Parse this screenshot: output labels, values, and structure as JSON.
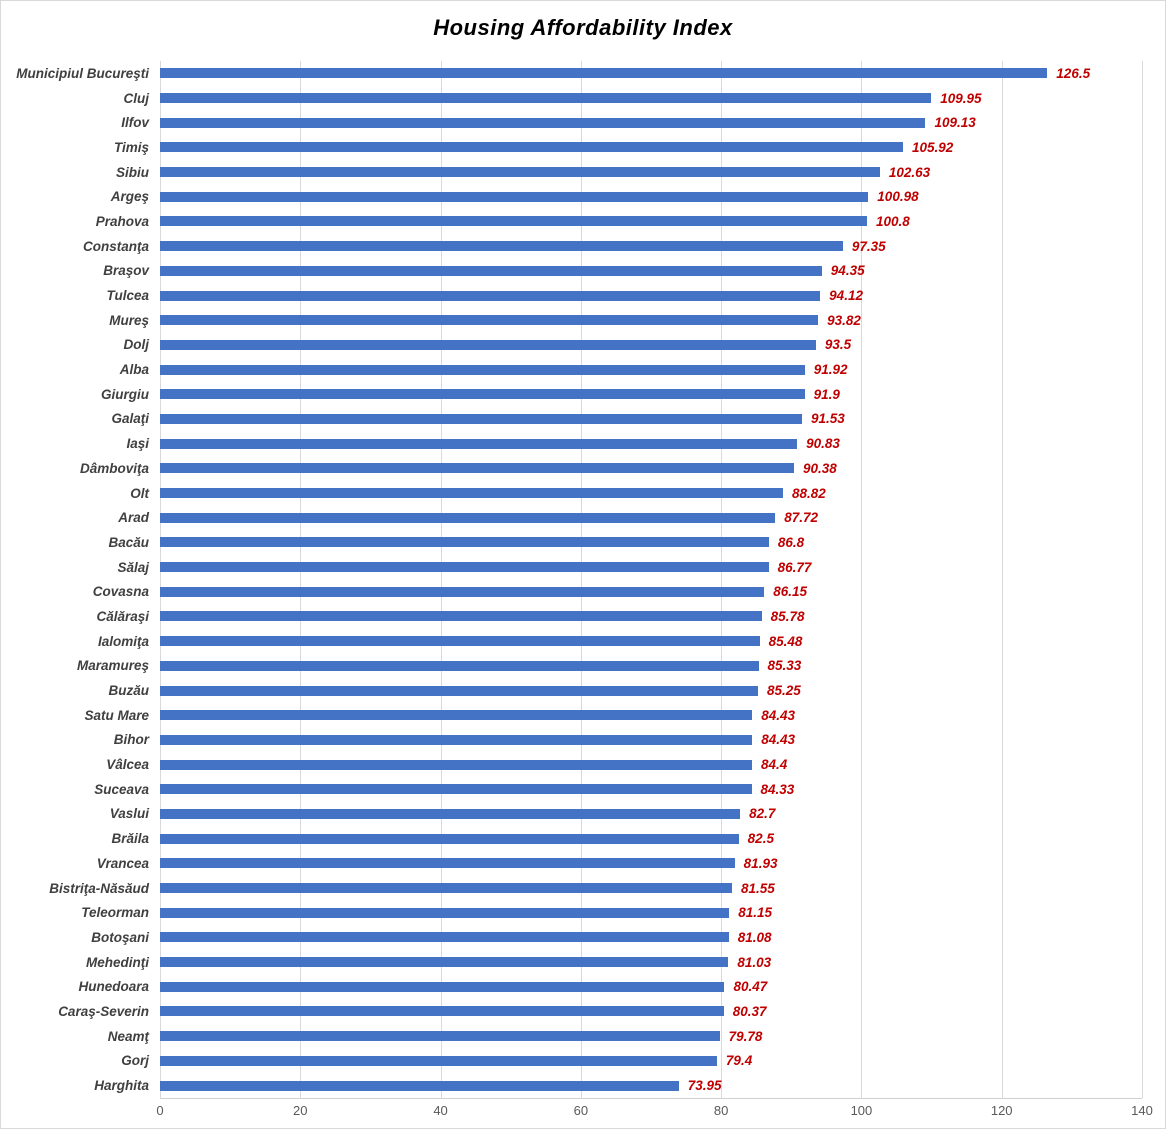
{
  "chart_data": {
    "type": "bar",
    "orientation": "horizontal",
    "title": "Housing Affordability Index",
    "categories": [
      "Municipiul Bucureşti",
      "Cluj",
      "Ilfov",
      "Timiş",
      "Sibiu",
      "Argeş",
      "Prahova",
      "Constanţa",
      "Braşov",
      "Tulcea",
      "Mureş",
      "Dolj",
      "Alba",
      "Giurgiu",
      "Galaţi",
      "Iaşi",
      "Dâmboviţa",
      "Olt",
      "Arad",
      "Bacău",
      "Sălaj",
      "Covasna",
      "Călăraşi",
      "Ialomiţa",
      "Maramureş",
      "Buzău",
      "Satu Mare",
      "Bihor",
      "Vâlcea",
      "Suceava",
      "Vaslui",
      "Brăila",
      "Vrancea",
      "Bistriţa-Năsăud",
      "Teleorman",
      "Botoşani",
      "Mehedinţi",
      "Hunedoara",
      "Caraş-Severin",
      "Neamţ",
      "Gorj",
      "Harghita"
    ],
    "values": [
      126.5,
      109.95,
      109.13,
      105.92,
      102.63,
      100.98,
      100.8,
      97.35,
      94.35,
      94.12,
      93.82,
      93.5,
      91.92,
      91.9,
      91.53,
      90.83,
      90.38,
      88.82,
      87.72,
      86.8,
      86.77,
      86.15,
      85.78,
      85.48,
      85.33,
      85.25,
      84.43,
      84.43,
      84.4,
      84.33,
      82.7,
      82.5,
      81.93,
      81.55,
      81.15,
      81.08,
      81.03,
      80.47,
      80.37,
      79.78,
      79.4,
      73.95
    ],
    "value_labels": [
      "126.5",
      "109.95",
      "109.13",
      "105.92",
      "102.63",
      "100.98",
      "100.8",
      "97.35",
      "94.35",
      "94.12",
      "93.82",
      "93.5",
      "91.92",
      "91.9",
      "91.53",
      "90.83",
      "90.38",
      "88.82",
      "87.72",
      "86.8",
      "86.77",
      "86.15",
      "85.78",
      "85.48",
      "85.33",
      "85.25",
      "84.43",
      "84.43",
      "84.4",
      "84.33",
      "82.7",
      "82.5",
      "81.93",
      "81.55",
      "81.15",
      "81.08",
      "81.03",
      "80.47",
      "80.37",
      "79.78",
      "79.4",
      "73.95"
    ],
    "xlabel": "",
    "ylabel": "",
    "xlim": [
      0,
      140
    ],
    "x_ticks": [
      0,
      20,
      40,
      60,
      80,
      100,
      120,
      140
    ],
    "grid": true,
    "legend": false,
    "colors": {
      "bar": "#4472c4",
      "value_label": "#c00000",
      "category_label": "#404040",
      "tick_label": "#595959",
      "gridline": "#d9d9d9",
      "title": "#000000",
      "axis_line": "#d0cece",
      "border": "#d9d9d9",
      "background": "#ffffff"
    }
  }
}
